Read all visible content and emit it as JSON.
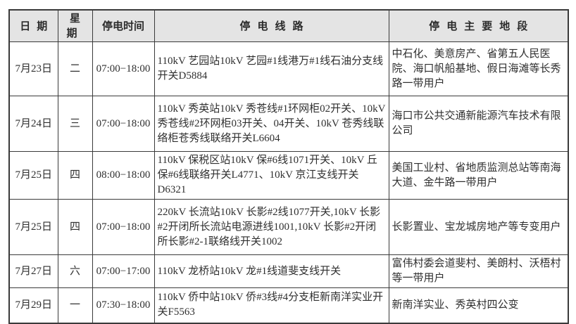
{
  "table": {
    "headers": {
      "date": "日期",
      "weekday": "星期",
      "time": "停电时间",
      "line": "停电线路",
      "area": "停电主要地段"
    },
    "rows": [
      {
        "date": "7月23日",
        "weekday": "二",
        "time": "07:00−18:00",
        "line": "110kV 艺园站10kV 艺园#1线港万#1线石油分支线开关D5884",
        "area": "中石化、美意房产、省第五人民医院、海口帆船基地、假日海滩等长秀路一带用户"
      },
      {
        "date": "7月24日",
        "weekday": "三",
        "time": "07:00−18:00",
        "line": "110kV 秀英站10kV 秀苍线#1环网柜02开关、10kV 秀苍线#2环网柜03开关、04开关、10kV 苍秀线联络柜苍秀线联络开关L6604",
        "area": "海口市公共交通新能源汽车技术有限公司"
      },
      {
        "date": "7月25日",
        "weekday": "四",
        "time": "08:00−18:00",
        "line": "110kV 保税区站10kV 保#6线1071开关、10kV 丘保#6线联络开关L4771、10kV 京江支线开关D6321",
        "area": "美国工业村、省地质监测总站等南海大道、金牛路一带用户"
      },
      {
        "date": "7月25日",
        "weekday": "四",
        "time": "07:00−18:00",
        "line": "220kV 长流站10kV 长影#2线1077开关,10kV 长影#2开闭所长流站电源进线1001,10kV 长影#2开闭所长影#2-1联络线开关1002",
        "area": "长影置业、宝龙城房地产等专变用户"
      },
      {
        "date": "7月27日",
        "weekday": "六",
        "time": "07:00−17:00",
        "line": "110kV 龙桥站10kV 龙#1线道斐支线开关",
        "area": "富伟村委会道斐村、美朗村、沃梧村等一带用户"
      },
      {
        "date": "7月29日",
        "weekday": "一",
        "time": "07:30−18:00",
        "line": "110kV 侨中站10kV 侨#3线#4分支柜新南洋实业开关F5563",
        "area": "新南洋实业、秀英村四公变"
      }
    ]
  }
}
